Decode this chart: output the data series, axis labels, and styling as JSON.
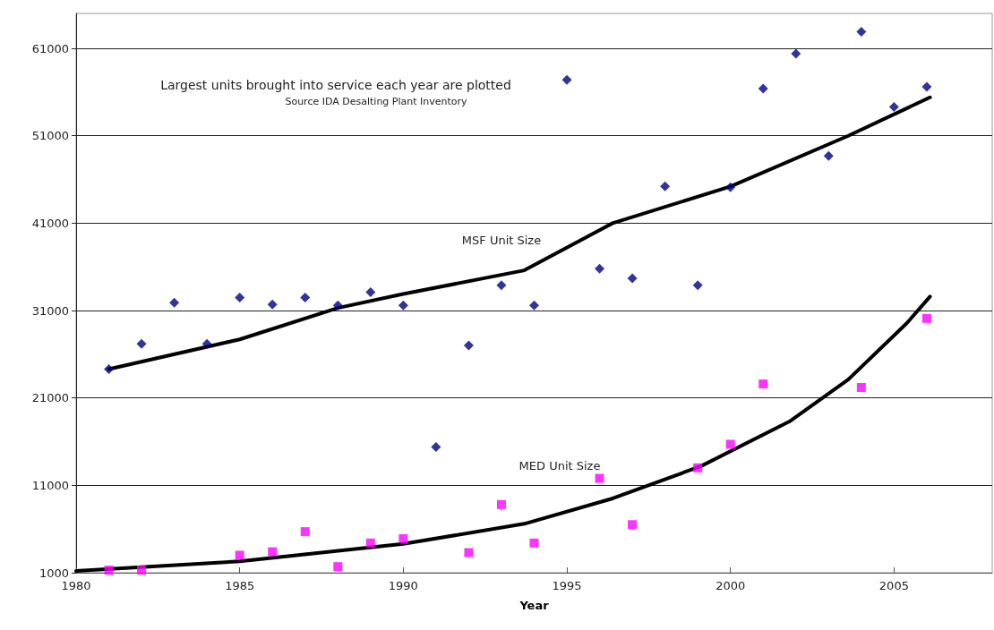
{
  "chart_data": {
    "type": "scatter",
    "xlabel": "Year",
    "xlim": [
      1980,
      2008
    ],
    "xticks": [
      1980,
      1985,
      1990,
      1995,
      2000,
      2005
    ],
    "ylim": [
      1000,
      65000
    ],
    "yticks": [
      1000,
      11000,
      21000,
      31000,
      41000,
      51000,
      61000
    ],
    "grid": "y",
    "annotations": [
      "Largest units brought into service each year are plotted",
      "Source IDA Desalting Plant Inventory",
      "MSF Unit Size",
      "MED Unit Size"
    ],
    "series": [
      {
        "color": "#000080",
        "marker": "diamond",
        "x": [
          1981,
          1982,
          1983,
          1984,
          1985,
          1986,
          1987,
          1988,
          1989,
          1990,
          1991,
          1992,
          1993,
          1994,
          1995,
          1996,
          1997,
          1998,
          1999,
          2000,
          2001,
          2002,
          2003,
          2004,
          2005,
          2006
        ],
        "values": [
          24300,
          27200,
          31900,
          27200,
          32500,
          31700,
          32500,
          31600,
          33100,
          31600,
          15400,
          27000,
          33900,
          31600,
          57400,
          35800,
          34700,
          45200,
          33900,
          45100,
          56400,
          60400,
          48700,
          62900,
          54300,
          56600
        ]
      },
      {
        "color": "#ff00ff",
        "marker": "square",
        "x": [
          1981,
          1982,
          1985,
          1986,
          1987,
          1988,
          1989,
          1990,
          1992,
          1993,
          1994,
          1996,
          1997,
          1999,
          2000,
          2001,
          2004,
          2006
        ],
        "values": [
          1300,
          1300,
          3000,
          3400,
          5700,
          1700,
          4400,
          4900,
          3300,
          8800,
          4400,
          11800,
          6500,
          13000,
          15700,
          22600,
          22200,
          30100
        ]
      },
      {
        "type": "line",
        "color": "#000000",
        "marker": "none",
        "line_style": "solid",
        "x": [
          1981,
          1985,
          1988,
          1990,
          1993.7,
          1996.4,
          2000,
          2003.6,
          2006.1
        ],
        "values": [
          24300,
          27700,
          31300,
          32900,
          35600,
          41000,
          45200,
          51000,
          55400
        ]
      },
      {
        "type": "line",
        "color": "#000000",
        "marker": "none",
        "line_style": "solid",
        "x": [
          1980,
          1985,
          1990,
          1993.7,
          1996.4,
          1999.1,
          2001.8,
          2003.6,
          2005.4,
          2006.1
        ],
        "values": [
          1200,
          2300,
          4300,
          6600,
          9500,
          13200,
          18300,
          23100,
          29600,
          32600
        ]
      }
    ]
  }
}
